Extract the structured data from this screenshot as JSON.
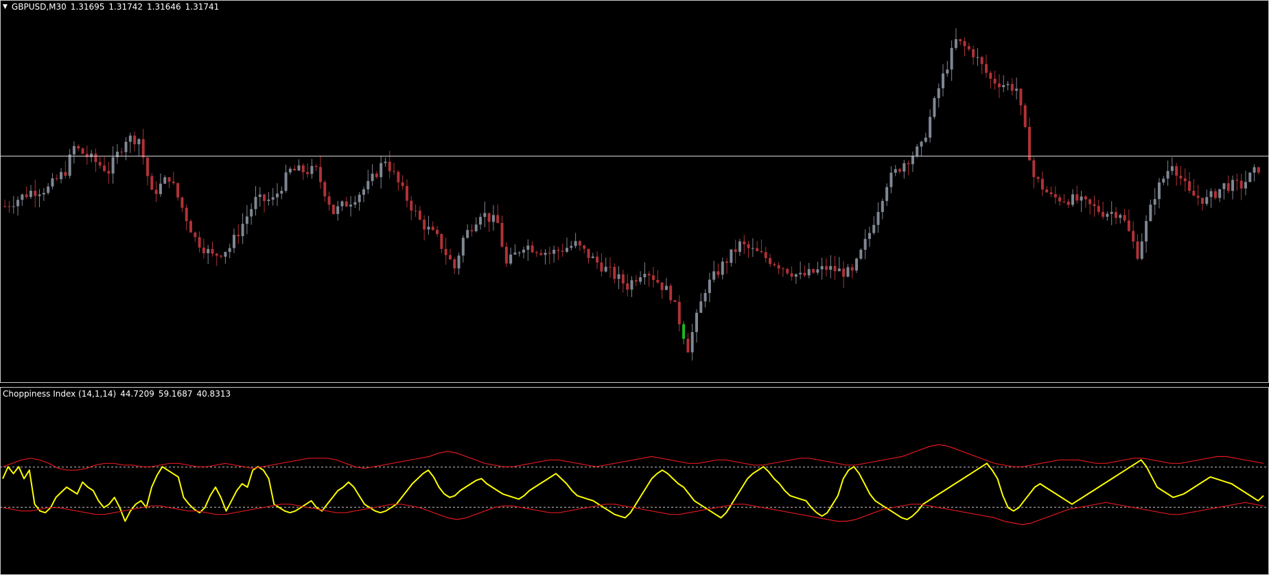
{
  "colors": {
    "background": "#000000",
    "bull_candle": "#7f8793",
    "bear_candle": "#b03237",
    "highlight_candle": "#1fb81f",
    "frame": "#c9c9c9",
    "level_line": "#d9d9d9",
    "chop_line": "#ffff00",
    "band_line": "#e0181e",
    "dotted_level": "#c8c8c8"
  },
  "price_pane": {
    "symbol_timeframe": "GBPUSD,M30",
    "ohlc": [
      "1.31695",
      "1.31742",
      "1.31646",
      "1.31741"
    ],
    "horizontal_level": 1.3175
  },
  "indicator_pane": {
    "name": "Choppiness Index (14,1,14)",
    "values": [
      "44.7209",
      "59.1687",
      "40.8313"
    ],
    "levels": [
      61.8,
      38.2
    ]
  },
  "chart_data": [
    {
      "type": "candlestick",
      "title": "GBPUSD,M30",
      "ylim": [
        1.3098,
        1.3228
      ],
      "grid": false,
      "close_path": [
        [
          0,
          1.3158
        ],
        [
          6,
          1.3163
        ],
        [
          10,
          1.3164
        ],
        [
          14,
          1.317
        ],
        [
          16,
          1.3178
        ],
        [
          20,
          1.3174
        ],
        [
          24,
          1.317
        ],
        [
          28,
          1.3181
        ],
        [
          31,
          1.3181
        ],
        [
          34,
          1.3162
        ],
        [
          38,
          1.3168
        ],
        [
          44,
          1.3147
        ],
        [
          48,
          1.3141
        ],
        [
          52,
          1.3144
        ],
        [
          58,
          1.316
        ],
        [
          62,
          1.316
        ],
        [
          66,
          1.317
        ],
        [
          72,
          1.317
        ],
        [
          76,
          1.3156
        ],
        [
          80,
          1.316
        ],
        [
          84,
          1.3165
        ],
        [
          88,
          1.3174
        ],
        [
          92,
          1.3163
        ],
        [
          96,
          1.3153
        ],
        [
          100,
          1.3147
        ],
        [
          104,
          1.3137
        ],
        [
          106,
          1.3147
        ],
        [
          110,
          1.3156
        ],
        [
          114,
          1.3152
        ],
        [
          116,
          1.3138
        ],
        [
          120,
          1.3145
        ],
        [
          126,
          1.3142
        ],
        [
          132,
          1.3145
        ],
        [
          136,
          1.314
        ],
        [
          144,
          1.3131
        ],
        [
          148,
          1.3137
        ],
        [
          154,
          1.3128
        ],
        [
          158,
          1.311
        ],
        [
          162,
          1.313
        ],
        [
          166,
          1.3138
        ],
        [
          170,
          1.3145
        ],
        [
          174,
          1.3142
        ],
        [
          178,
          1.3139
        ],
        [
          184,
          1.3134
        ],
        [
          190,
          1.3137
        ],
        [
          196,
          1.3135
        ],
        [
          200,
          1.3149
        ],
        [
          204,
          1.3166
        ],
        [
          208,
          1.3173
        ],
        [
          212,
          1.3178
        ],
        [
          216,
          1.3198
        ],
        [
          220,
          1.3214
        ],
        [
          224,
          1.321
        ],
        [
          228,
          1.3201
        ],
        [
          234,
          1.3198
        ],
        [
          238,
          1.3168
        ],
        [
          242,
          1.3161
        ],
        [
          248,
          1.316
        ],
        [
          254,
          1.3156
        ],
        [
          258,
          1.3156
        ],
        [
          262,
          1.3142
        ],
        [
          266,
          1.3162
        ],
        [
          270,
          1.3173
        ],
        [
          274,
          1.3162
        ],
        [
          278,
          1.316
        ],
        [
          282,
          1.3165
        ],
        [
          286,
          1.3165
        ],
        [
          290,
          1.3171
        ]
      ],
      "candle_count": 291
    },
    {
      "type": "line",
      "title": "Choppiness Index (14,1,14)",
      "ylim": [
        0,
        100
      ],
      "levels": [
        61.8,
        38.2
      ],
      "x_count": 291,
      "series": [
        {
          "name": "Choppiness Index (14,1,14)",
          "color": "#ffff00",
          "values": [
            55,
            62,
            58,
            62,
            55,
            60,
            40,
            36,
            35,
            38,
            44,
            47,
            50,
            48,
            46,
            53,
            50,
            48,
            42,
            38,
            40,
            44,
            38,
            30,
            36,
            40,
            42,
            38,
            50,
            57,
            62,
            60,
            58,
            56,
            44,
            40,
            37,
            35,
            38,
            45,
            50,
            44,
            36,
            42,
            48,
            52,
            50,
            60,
            62,
            60,
            55,
            40,
            38,
            36,
            35,
            36,
            38,
            40,
            42,
            38,
            36,
            40,
            44,
            48,
            50,
            53,
            50,
            45,
            40,
            38,
            36,
            35,
            36,
            38,
            40,
            44,
            48,
            52,
            55,
            58,
            60,
            56,
            50,
            46,
            44,
            45,
            48,
            50,
            52,
            54,
            55,
            52,
            50,
            48,
            46,
            45,
            44,
            43,
            45,
            48,
            50,
            52,
            54,
            56,
            58,
            55,
            52,
            48,
            45,
            44,
            43,
            42,
            40,
            38,
            36,
            34,
            33,
            32,
            35,
            40,
            45,
            50,
            55,
            58,
            60,
            58,
            55,
            52,
            50,
            46,
            42,
            40,
            38,
            36,
            34,
            32,
            35,
            40,
            45,
            50,
            55,
            58,
            60,
            62,
            59,
            55,
            52,
            48,
            45,
            44,
            43,
            42,
            38,
            35,
            33,
            35,
            40,
            45,
            55,
            60,
            62,
            58,
            52,
            46,
            42,
            40,
            38,
            36,
            34,
            32,
            31,
            33,
            36,
            40,
            42,
            44,
            46,
            48,
            50,
            52,
            54,
            56,
            58,
            60,
            62,
            64,
            60,
            55,
            45,
            38,
            36,
            38,
            42,
            46,
            50,
            52,
            50,
            48,
            46,
            44,
            42,
            40,
            42,
            44,
            46,
            48,
            50,
            52,
            54,
            56,
            58,
            60,
            62,
            64,
            66,
            62,
            56,
            50,
            48,
            46,
            44,
            45,
            46,
            48,
            50,
            52,
            54,
            56,
            55,
            54,
            53,
            52,
            50,
            48,
            46,
            44,
            42,
            45
          ],
          "color_note": "yellow"
        },
        {
          "name": "",
          "color": "#e0181e",
          "values": [
            62,
            64,
            66,
            67,
            66,
            64,
            61,
            60,
            60,
            61,
            63,
            64,
            64,
            63,
            63,
            62,
            62,
            63,
            64,
            64,
            63,
            62,
            62,
            63,
            64,
            63,
            62,
            61,
            62,
            63,
            64,
            65,
            66,
            67,
            67,
            67,
            66,
            64,
            62,
            61,
            62,
            63,
            64,
            65,
            66,
            67,
            68,
            70,
            71,
            70,
            68,
            66,
            64,
            63,
            62,
            62,
            63,
            64,
            65,
            66,
            66,
            65,
            64,
            63,
            62,
            63,
            64,
            65,
            66,
            67,
            68,
            67,
            66,
            65,
            64,
            64,
            65,
            66,
            66,
            65,
            64,
            63,
            63,
            64,
            65,
            66,
            67,
            67,
            66,
            65,
            64,
            63,
            63,
            64,
            65,
            66,
            67,
            68,
            70,
            72,
            74,
            75,
            74,
            72,
            70,
            68,
            66,
            64,
            63,
            62,
            62,
            63,
            64,
            65,
            66,
            66,
            66,
            65,
            64,
            64,
            65,
            66,
            67,
            67,
            66,
            65,
            64,
            64,
            65,
            66,
            67,
            68,
            68,
            67,
            66,
            65,
            64
          ]
        },
        {
          "name": "",
          "color": "#e0181e",
          "values": [
            38,
            37,
            36,
            36,
            37,
            38,
            38,
            37,
            36,
            35,
            34,
            34,
            35,
            36,
            37,
            38,
            39,
            39,
            38,
            37,
            36,
            36,
            35,
            34,
            34,
            35,
            36,
            37,
            38,
            39,
            40,
            40,
            39,
            38,
            37,
            36,
            35,
            35,
            36,
            37,
            38,
            39,
            40,
            40,
            39,
            38,
            36,
            34,
            32,
            31,
            32,
            34,
            36,
            38,
            39,
            39,
            38,
            37,
            36,
            35,
            35,
            36,
            37,
            38,
            39,
            40,
            40,
            39,
            38,
            37,
            36,
            35,
            34,
            34,
            35,
            36,
            37,
            38,
            39,
            40,
            40,
            39,
            38,
            37,
            36,
            35,
            34,
            33,
            32,
            31,
            30,
            30,
            31,
            33,
            35,
            37,
            38,
            39,
            40,
            40,
            39,
            38,
            37,
            36,
            35,
            34,
            33,
            32,
            30,
            29,
            28,
            29,
            31,
            33,
            35,
            37,
            38,
            39,
            40,
            41,
            40,
            39,
            38,
            37,
            36,
            35,
            34,
            34,
            35,
            36,
            37,
            38,
            39,
            40,
            41,
            40,
            39
          ]
        }
      ]
    }
  ]
}
